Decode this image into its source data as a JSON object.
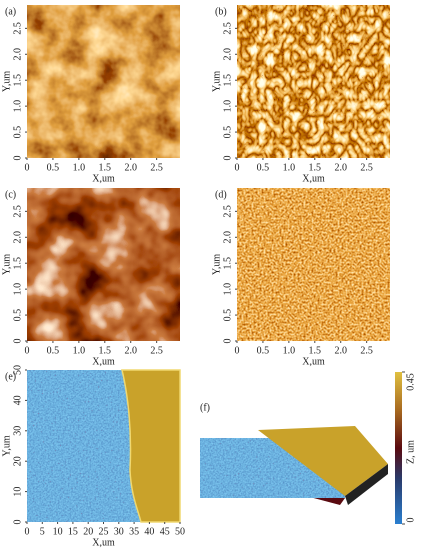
{
  "chart_data": [
    {
      "type": "image",
      "label": "(a)",
      "xlabel": "X,um",
      "ylabel": "Y,um",
      "xlim": [
        0,
        2.95
      ],
      "ylim": [
        0,
        2.95
      ],
      "xticks": [
        0,
        0.5,
        {
          "value": 1,
          "label": "1.0"
        },
        1.5,
        {
          "value": 2,
          "label": "2.0"
        },
        2.5
      ],
      "yticks": [
        0,
        0.5,
        {
          "value": 1,
          "label": "1.0"
        },
        1.5,
        {
          "value": 2,
          "label": "2.0"
        },
        2.5
      ]
    },
    {
      "type": "image",
      "label": "(b)",
      "xlabel": "X,um",
      "ylabel": "Y,um",
      "xlim": [
        0,
        2.95
      ],
      "ylim": [
        0,
        2.95
      ],
      "xticks": [
        0,
        0.5,
        {
          "value": 1,
          "label": "1.0"
        },
        1.5,
        {
          "value": 2,
          "label": "2.0"
        },
        2.5
      ],
      "yticks": [
        0,
        0.5,
        {
          "value": 1,
          "label": "1.0"
        },
        1.5,
        {
          "value": 2,
          "label": "2.0"
        },
        2.5
      ]
    },
    {
      "type": "image",
      "label": "(c)",
      "xlabel": "X,um",
      "ylabel": "Y,um",
      "xlim": [
        0,
        2.95
      ],
      "ylim": [
        0,
        2.95
      ],
      "xticks": [
        0,
        0.5,
        {
          "value": 1,
          "label": "1.0"
        },
        1.5,
        {
          "value": 2,
          "label": "2.0"
        },
        2.5
      ],
      "yticks": [
        0,
        0.5,
        {
          "value": 1,
          "label": "1.0"
        },
        1.5,
        {
          "value": 2,
          "label": "2.0"
        },
        2.5
      ]
    },
    {
      "type": "image",
      "label": "(d)",
      "xlabel": "X,um",
      "ylabel": "Y,um",
      "xlim": [
        0,
        2.95
      ],
      "ylim": [
        0,
        2.95
      ],
      "xticks": [
        0,
        0.5,
        {
          "value": 1,
          "label": "1.0"
        },
        1.5,
        {
          "value": 2,
          "label": "2.0"
        },
        2.5
      ],
      "yticks": [
        0,
        0.5,
        {
          "value": 1,
          "label": "1.0"
        },
        1.5,
        {
          "value": 2,
          "label": "2.0"
        },
        2.5
      ]
    },
    {
      "type": "image",
      "label": "(e)",
      "xlabel": "X,um",
      "ylabel": "Y,um",
      "xlim": [
        0,
        50
      ],
      "ylim": [
        0,
        50
      ],
      "xticks": [
        0,
        5,
        10,
        15,
        20,
        25,
        30,
        35,
        40,
        45,
        50
      ],
      "yticks": [
        0,
        10,
        20,
        30,
        40,
        50
      ]
    },
    {
      "type": "surface3d",
      "label": "(f)",
      "zlabel": "Z, um",
      "zlim": [
        0,
        0.45
      ],
      "zticks": [
        0,
        0.45
      ]
    }
  ]
}
